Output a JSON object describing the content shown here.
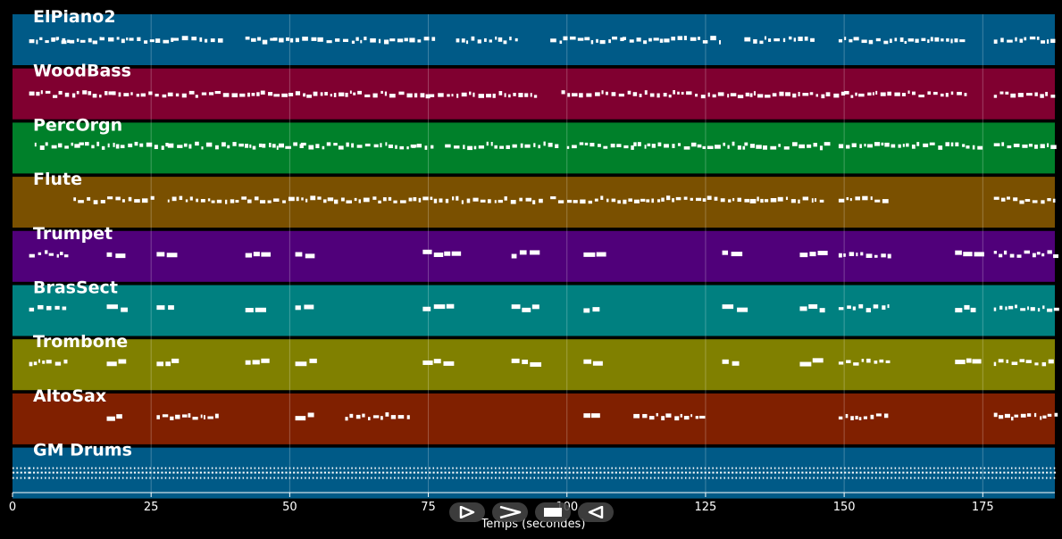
{
  "chart_data": {
    "type": "piano-roll",
    "title": "",
    "xlabel": "Temps (secondes)",
    "ylabel": "",
    "xlim": [
      0,
      188
    ],
    "x_ticks": [
      0,
      25,
      50,
      75,
      100,
      125,
      150,
      175
    ],
    "grid": true,
    "tracks": [
      {
        "name": "ElPiano2",
        "color": "#005a87",
        "segments": [
          [
            3,
            10
          ],
          [
            7,
            16
          ],
          [
            16,
            29
          ],
          [
            29,
            38
          ],
          [
            42,
            47
          ],
          [
            47,
            55
          ],
          [
            55,
            76
          ],
          [
            80,
            91
          ],
          [
            97,
            110
          ],
          [
            110,
            128
          ],
          [
            132,
            144
          ],
          [
            149,
            171
          ],
          [
            177,
            188
          ]
        ]
      },
      {
        "name": "WoodBass",
        "color": "#800030",
        "segments": [
          [
            3,
            18
          ],
          [
            18,
            28
          ],
          [
            28,
            44
          ],
          [
            44,
            60
          ],
          [
            60,
            75
          ],
          [
            75,
            95
          ],
          [
            99,
            115
          ],
          [
            115,
            133
          ],
          [
            133,
            150
          ],
          [
            150,
            172
          ],
          [
            177,
            188
          ]
        ]
      },
      {
        "name": "PercOrgn",
        "color": "#00802a",
        "segments": [
          [
            4,
            12
          ],
          [
            12,
            22
          ],
          [
            22,
            28
          ],
          [
            28,
            45
          ],
          [
            45,
            48
          ],
          [
            48,
            52
          ],
          [
            52,
            72
          ],
          [
            72,
            76
          ],
          [
            78,
            98
          ],
          [
            100,
            112
          ],
          [
            112,
            132
          ],
          [
            132,
            148
          ],
          [
            149,
            175
          ],
          [
            177,
            188
          ]
        ]
      },
      {
        "name": "Flute",
        "color": "#7a5000",
        "segments": [
          [
            11,
            26
          ],
          [
            28,
            46
          ],
          [
            46,
            58
          ],
          [
            58,
            76
          ],
          [
            76,
            95
          ],
          [
            97,
            117
          ],
          [
            117,
            133
          ],
          [
            133,
            146
          ],
          [
            149,
            158
          ],
          [
            177,
            188
          ]
        ]
      },
      {
        "name": "Trumpet",
        "color": "#50007a",
        "segments": [
          [
            3,
            10
          ],
          [
            17,
            20
          ],
          [
            26,
            29
          ],
          [
            42,
            45
          ],
          [
            51,
            54
          ],
          [
            74,
            75
          ],
          [
            76,
            80
          ],
          [
            90,
            95
          ],
          [
            103,
            106
          ],
          [
            128,
            131
          ],
          [
            142,
            146
          ],
          [
            149,
            158
          ],
          [
            170,
            174
          ],
          [
            177,
            188
          ]
        ]
      },
      {
        "name": "BrasSect",
        "color": "#008080",
        "segments": [
          [
            3,
            10
          ],
          [
            17,
            20
          ],
          [
            26,
            29
          ],
          [
            42,
            45
          ],
          [
            51,
            54
          ],
          [
            74,
            75
          ],
          [
            76,
            80
          ],
          [
            90,
            95
          ],
          [
            103,
            106
          ],
          [
            128,
            131
          ],
          [
            142,
            146
          ],
          [
            149,
            158
          ],
          [
            170,
            174
          ],
          [
            177,
            188
          ]
        ]
      },
      {
        "name": "Trombone",
        "color": "#808000",
        "segments": [
          [
            3,
            10
          ],
          [
            17,
            20
          ],
          [
            26,
            29
          ],
          [
            42,
            45
          ],
          [
            51,
            54
          ],
          [
            74,
            75
          ],
          [
            76,
            80
          ],
          [
            90,
            95
          ],
          [
            103,
            106
          ],
          [
            128,
            131
          ],
          [
            142,
            146
          ],
          [
            149,
            158
          ],
          [
            170,
            174
          ],
          [
            177,
            188
          ]
        ]
      },
      {
        "name": "AltoSax",
        "color": "#802000",
        "segments": [
          [
            17,
            20
          ],
          [
            26,
            37
          ],
          [
            51,
            54
          ],
          [
            60,
            72
          ],
          [
            103,
            106
          ],
          [
            112,
            124
          ],
          [
            149,
            158
          ],
          [
            177,
            188
          ]
        ]
      },
      {
        "name": "GM Drums",
        "color": "#005a87",
        "segments": [
          [
            0,
            3
          ],
          [
            3,
            188
          ]
        ]
      }
    ]
  },
  "controls": [
    {
      "name": "play",
      "icon": "play-icon"
    },
    {
      "name": "forward",
      "icon": "chevron-right-icon"
    },
    {
      "name": "stop",
      "icon": "stop-icon"
    },
    {
      "name": "rewind",
      "icon": "rewind-icon"
    }
  ]
}
